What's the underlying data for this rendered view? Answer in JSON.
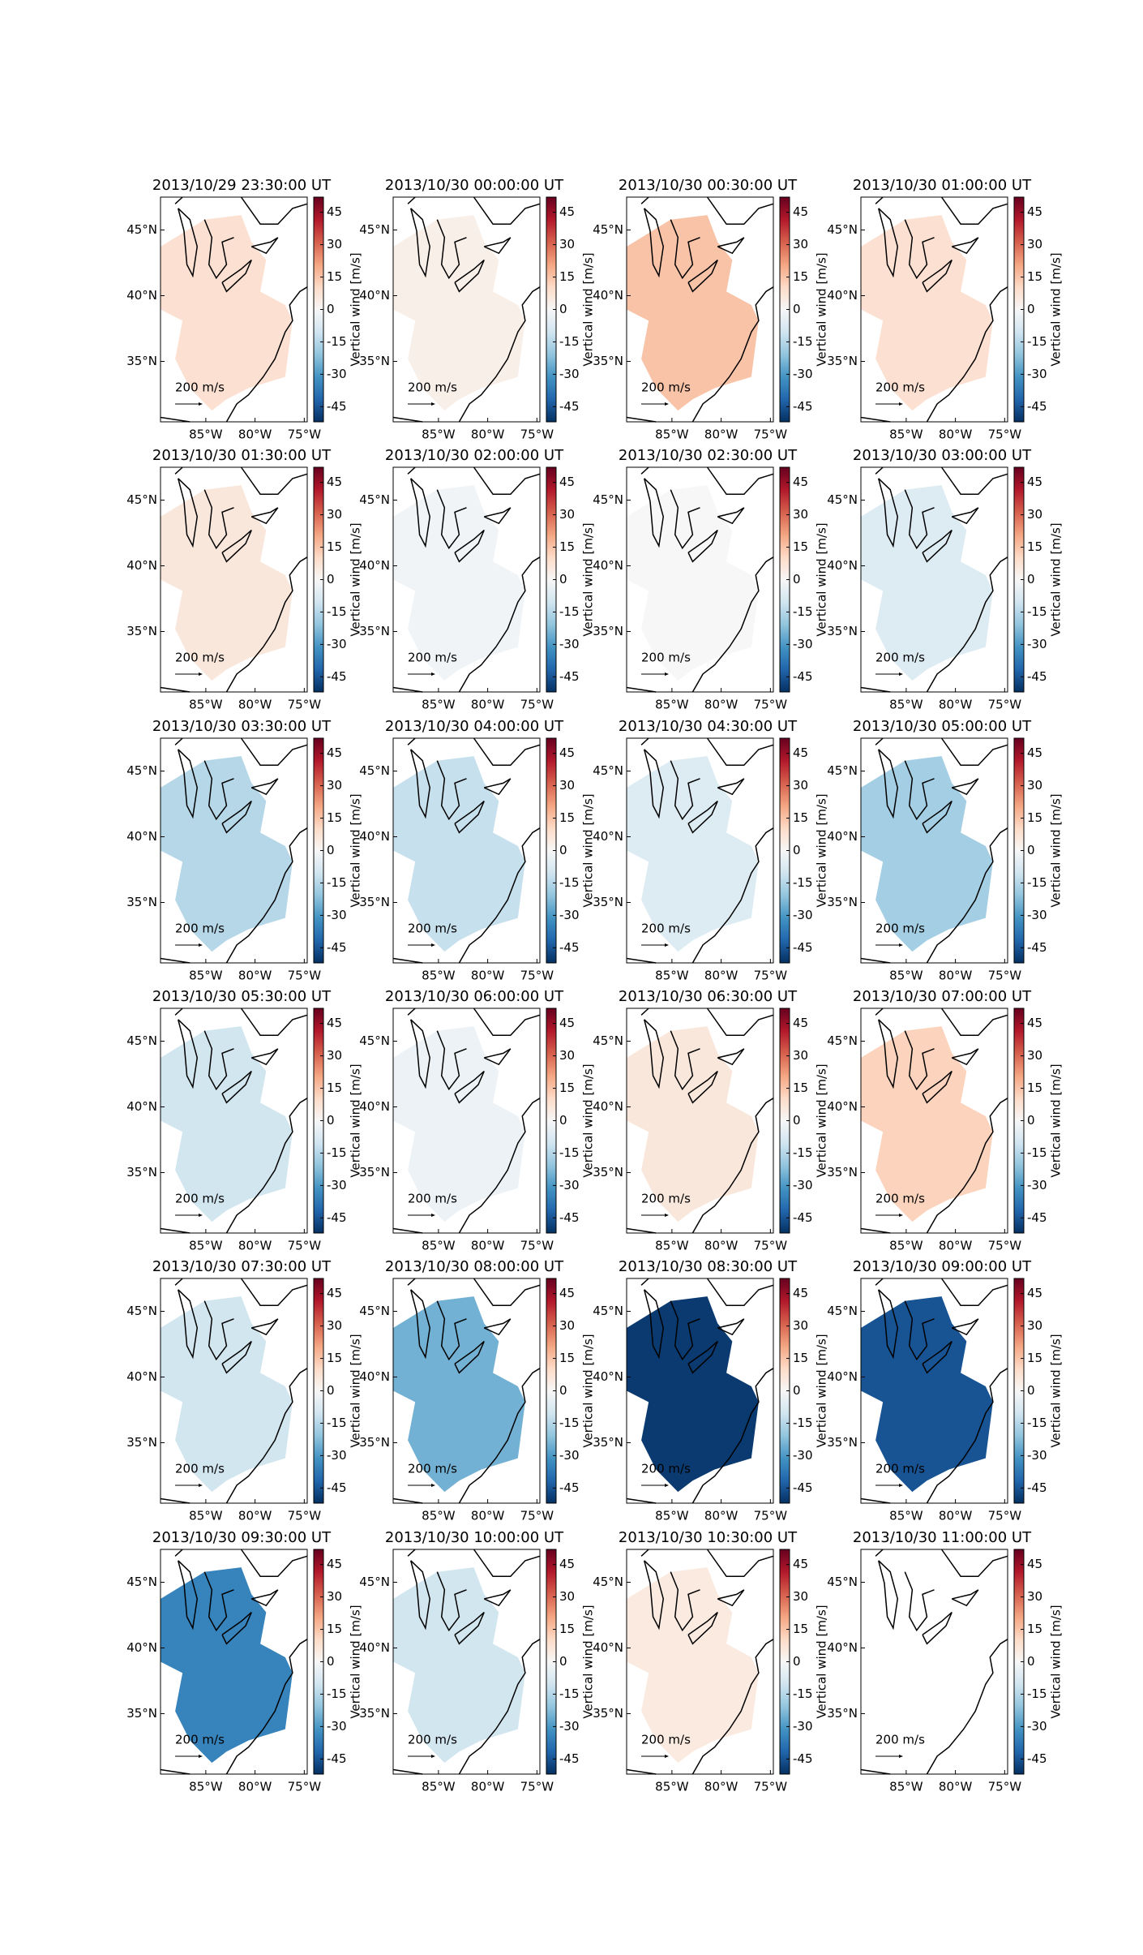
{
  "chart_data": {
    "type": "map",
    "xlim": [
      -89.6,
      -74.7
    ],
    "ylim": [
      30.4,
      47.5
    ],
    "xticks": [
      {
        "value": -85,
        "label": "85°W"
      },
      {
        "value": -80,
        "label": "80°W"
      },
      {
        "value": -75,
        "label": "75°W"
      }
    ],
    "yticks": [
      {
        "value": 35,
        "label": "35°N"
      },
      {
        "value": 40,
        "label": "40°N"
      },
      {
        "value": 45,
        "label": "45°N"
      }
    ],
    "colorbar": {
      "label": "Vertical wind [m/s]",
      "lim": [
        -52,
        52
      ],
      "ticks": [
        -45,
        -30,
        -15,
        0,
        15,
        30,
        45
      ]
    },
    "colormap": [
      "#053061",
      "#2166ac",
      "#4393c3",
      "#92c5de",
      "#d1e5f0",
      "#f7f7f7",
      "#fddbc7",
      "#f4a582",
      "#d6604d",
      "#b2182b",
      "#67001f"
    ],
    "scale_label": "200 m/s",
    "panels": [
      {
        "title": "2013/10/29 23:30:00 UT",
        "value": 8
      },
      {
        "title": "2013/10/30 00:00:00 UT",
        "value": 3
      },
      {
        "title": "2013/10/30 00:30:00 UT",
        "value": 15
      },
      {
        "title": "2013/10/30 01:00:00 UT",
        "value": 8
      },
      {
        "title": "2013/10/30 01:30:00 UT",
        "value": 6
      },
      {
        "title": "2013/10/30 02:00:00 UT",
        "value": -2
      },
      {
        "title": "2013/10/30 02:30:00 UT",
        "value": 0
      },
      {
        "title": "2013/10/30 03:00:00 UT",
        "value": -7
      },
      {
        "title": "2013/10/30 03:30:00 UT",
        "value": -15
      },
      {
        "title": "2013/10/30 04:00:00 UT",
        "value": -12
      },
      {
        "title": "2013/10/30 04:30:00 UT",
        "value": -7
      },
      {
        "title": "2013/10/30 05:00:00 UT",
        "value": -18
      },
      {
        "title": "2013/10/30 05:30:00 UT",
        "value": -10
      },
      {
        "title": "2013/10/30 06:00:00 UT",
        "value": -3
      },
      {
        "title": "2013/10/30 06:30:00 UT",
        "value": 6
      },
      {
        "title": "2013/10/30 07:00:00 UT",
        "value": 12
      },
      {
        "title": "2013/10/30 07:30:00 UT",
        "value": -10
      },
      {
        "title": "2013/10/30 08:00:00 UT",
        "value": -25
      },
      {
        "title": "2013/10/30 08:30:00 UT",
        "value": -50
      },
      {
        "title": "2013/10/30 09:00:00 UT",
        "value": -45
      },
      {
        "title": "2013/10/30 09:30:00 UT",
        "value": -35
      },
      {
        "title": "2013/10/30 10:00:00 UT",
        "value": -10
      },
      {
        "title": "2013/10/30 10:30:00 UT",
        "value": 5
      },
      {
        "title": "2013/10/30 11:00:00 UT",
        "value": null
      }
    ]
  }
}
